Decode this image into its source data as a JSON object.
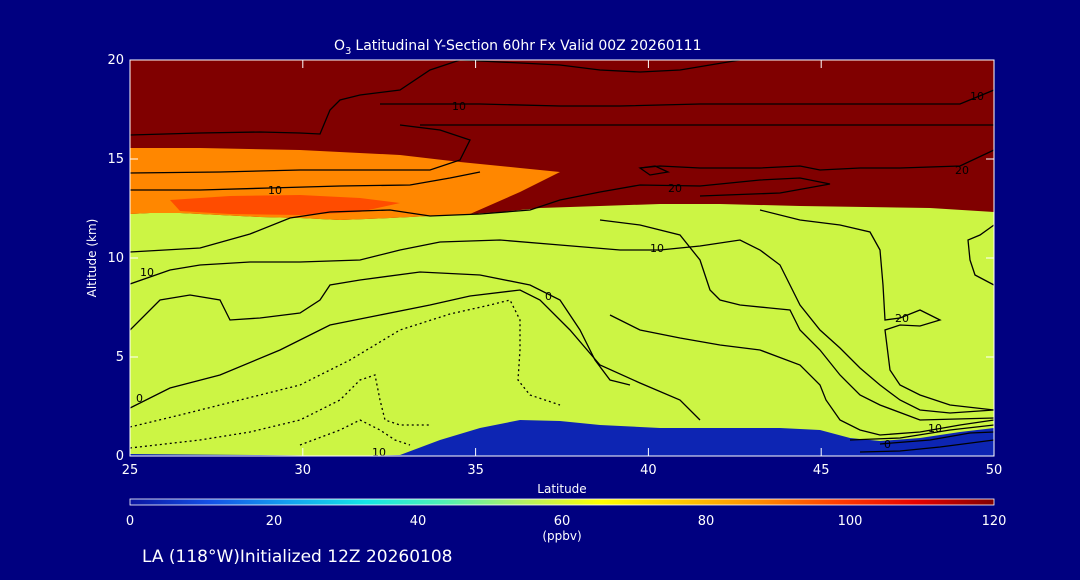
{
  "chart_data": {
    "type": "heatmap",
    "title": "Latitudinal Y-Section 60hr  Fx Valid 00Z 20260111",
    "title_species": "O",
    "title_species_subscript": "3",
    "xlabel": "Latitude",
    "ylabel": "Altitude (km)",
    "xlim": [
      25,
      50
    ],
    "ylim": [
      0,
      20
    ],
    "xticks": [
      25,
      30,
      35,
      40,
      45,
      50
    ],
    "yticks": [
      0,
      5,
      10,
      15,
      20
    ],
    "colorbar": {
      "label": "(ppbv)",
      "range": [
        0,
        120
      ],
      "ticks": [
        0,
        20,
        40,
        60,
        80,
        100,
        120
      ],
      "colors": [
        "#0a14a0",
        "#1450e6",
        "#14a0f0",
        "#14e6e6",
        "#50f0b4",
        "#b4f064",
        "#ffff00",
        "#ffc800",
        "#ff8c00",
        "#ff3c00",
        "#e60000",
        "#800000"
      ]
    },
    "fields": {
      "background_level": 58,
      "high_level": 125,
      "surface_level": 3,
      "lower_strat_level": 88,
      "lower_strat_core_level": 96
    },
    "contour_labels": [
      "10",
      "10",
      "10",
      "0",
      "10",
      "20",
      "10",
      "20",
      "20",
      "10",
      "0",
      "0",
      "10"
    ],
    "footer_text": "LA (118°W)Initialized 12Z 20260108"
  }
}
